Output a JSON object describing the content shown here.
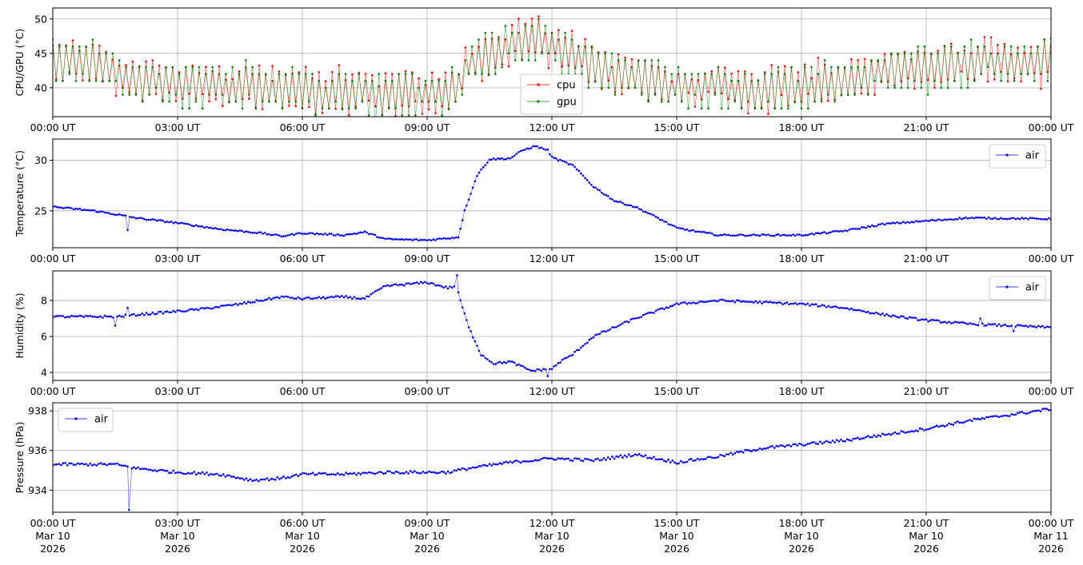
{
  "chart_data": [
    {
      "type": "line",
      "ylabel": "CPU/GPU (°C)",
      "ylim": [
        35.8,
        51.6
      ],
      "yticks": [
        40,
        45,
        50
      ],
      "legend": "lower-center",
      "xticks": [
        "00:00 UT",
        "03:00 UT",
        "06:00 UT",
        "09:00 UT",
        "12:00 UT",
        "15:00 UT",
        "18:00 UT",
        "21:00 UT",
        "00:00 UT"
      ],
      "oscillation_amplitude": 3,
      "series": [
        {
          "name": "cpu",
          "color": "#ff0000",
          "offset": 0.3,
          "x": [
            0,
            1,
            2,
            3,
            5,
            6,
            8,
            9.5,
            9.8,
            10,
            11,
            11.5,
            12,
            13,
            14,
            15,
            16,
            17,
            18,
            19,
            20,
            21,
            22,
            24
          ],
          "y": [
            44,
            43.5,
            41,
            40.5,
            40,
            39.5,
            39,
            39,
            41,
            44,
            46,
            47,
            46,
            43,
            41.5,
            40,
            40,
            39.5,
            40,
            41,
            42.5,
            43,
            43.5,
            43.5
          ]
        },
        {
          "name": "gpu",
          "color": "#008000",
          "offset": 0,
          "x": [
            0,
            1,
            2,
            3,
            5,
            6,
            8,
            9.5,
            9.8,
            10,
            11,
            11.5,
            12,
            13,
            14,
            15,
            16,
            17,
            18,
            19,
            20,
            21,
            22,
            24
          ],
          "y": [
            44,
            43.5,
            41,
            40.5,
            40,
            39.5,
            39,
            39,
            41,
            44,
            46,
            47,
            46,
            43,
            41.5,
            40,
            40,
            39.5,
            40,
            41,
            42.5,
            43,
            43.5,
            43.5
          ]
        }
      ]
    },
    {
      "type": "line",
      "ylabel": "Temperature (°C)",
      "ylim": [
        21.35,
        32.1
      ],
      "yticks": [
        25,
        30
      ],
      "legend": "upper-right",
      "xticks": [
        "00:00 UT",
        "03:00 UT",
        "06:00 UT",
        "09:00 UT",
        "12:00 UT",
        "15:00 UT",
        "18:00 UT",
        "21:00 UT",
        "00:00 UT"
      ],
      "series": [
        {
          "name": "air",
          "color": "#0000ff",
          "noise": 0.08,
          "x": [
            0,
            1,
            1.6,
            2,
            3,
            4,
            5,
            5.5,
            6,
            7,
            7.5,
            8,
            9,
            9.5,
            9.75,
            9.9,
            10.2,
            10.5,
            11,
            11.3,
            11.6,
            11.9,
            12,
            12.5,
            13,
            13.5,
            14,
            14.5,
            15,
            16,
            17,
            18,
            19,
            20,
            21,
            22,
            24
          ],
          "y": [
            25.4,
            25,
            24.6,
            24.3,
            23.8,
            23.2,
            22.8,
            22.5,
            22.8,
            22.6,
            22.9,
            22.2,
            22.1,
            22.3,
            22.4,
            25,
            28.5,
            30.1,
            30.2,
            31,
            31.4,
            31,
            30.3,
            29.5,
            27.4,
            26,
            25.4,
            24.4,
            23.3,
            22.6,
            22.6,
            22.6,
            23,
            23.7,
            24,
            24.3,
            24.2
          ],
          "outliers": [
            [
              1.8,
              23.1
            ]
          ]
        }
      ]
    },
    {
      "type": "line",
      "ylabel": "Humidity (%)",
      "ylim": [
        3.56,
        9.64
      ],
      "yticks": [
        4,
        6,
        8
      ],
      "legend": "upper-right",
      "xticks": [
        "00:00 UT",
        "03:00 UT",
        "06:00 UT",
        "09:00 UT",
        "12:00 UT",
        "15:00 UT",
        "18:00 UT",
        "21:00 UT",
        "00:00 UT"
      ],
      "series": [
        {
          "name": "air",
          "color": "#0000ff",
          "noise": 0.06,
          "x": [
            0,
            1.5,
            2.5,
            3.5,
            4.5,
            5.5,
            6,
            7,
            7.5,
            8,
            8.5,
            9,
            9.5,
            9.7,
            9.8,
            10,
            10.3,
            10.6,
            11,
            11.5,
            12,
            12.2,
            12.5,
            13,
            14,
            15,
            16,
            17,
            18,
            19,
            20,
            21,
            22,
            23,
            24
          ],
          "y": [
            7.1,
            7.1,
            7.3,
            7.5,
            7.8,
            8.2,
            8.1,
            8.2,
            8.1,
            8.8,
            8.9,
            9.0,
            8.7,
            8.8,
            8.0,
            6.5,
            5.0,
            4.5,
            4.6,
            4.1,
            4.2,
            4.6,
            5.0,
            6.0,
            7.0,
            7.8,
            8.0,
            7.9,
            7.8,
            7.6,
            7.2,
            6.9,
            6.7,
            6.6,
            6.5
          ],
          "outliers": [
            [
              9.72,
              9.4
            ],
            [
              1.5,
              6.6
            ],
            [
              1.8,
              7.6
            ],
            [
              11.9,
              3.8
            ],
            [
              22.3,
              7.0
            ],
            [
              23.1,
              6.3
            ]
          ]
        }
      ]
    },
    {
      "type": "line",
      "ylabel": "Pressure (hPa)",
      "ylim": [
        932.88,
        938.41
      ],
      "yticks": [
        934,
        936,
        938
      ],
      "legend": "upper-left",
      "xticks": [
        "00:00 UT\nMar 10\n2026",
        "03:00 UT\nMar 10\n2026",
        "06:00 UT\nMar 10\n2026",
        "09:00 UT\nMar 10\n2026",
        "12:00 UT\nMar 10\n2026",
        "15:00 UT\nMar 10\n2026",
        "18:00 UT\nMar 10\n2026",
        "21:00 UT\nMar 10\n2026",
        "00:00 UT\nMar 11\n2026"
      ],
      "series": [
        {
          "name": "air",
          "color": "#0000ff",
          "noise": 0.07,
          "x": [
            0,
            1.5,
            2,
            3,
            4,
            4.8,
            5.5,
            6,
            7,
            8,
            9,
            9.5,
            10,
            11,
            12,
            13,
            14,
            15,
            16,
            17,
            18,
            19,
            20,
            21,
            22,
            23,
            24
          ],
          "y": [
            935.3,
            935.3,
            935.1,
            934.9,
            934.8,
            934.5,
            934.6,
            934.8,
            934.8,
            934.9,
            934.9,
            934.9,
            935.1,
            935.4,
            935.6,
            935.5,
            935.8,
            935.4,
            935.7,
            936.1,
            936.3,
            936.5,
            936.8,
            937.1,
            937.5,
            937.8,
            938.1
          ],
          "outliers": [
            [
              1.83,
              933.0
            ]
          ]
        }
      ]
    }
  ]
}
